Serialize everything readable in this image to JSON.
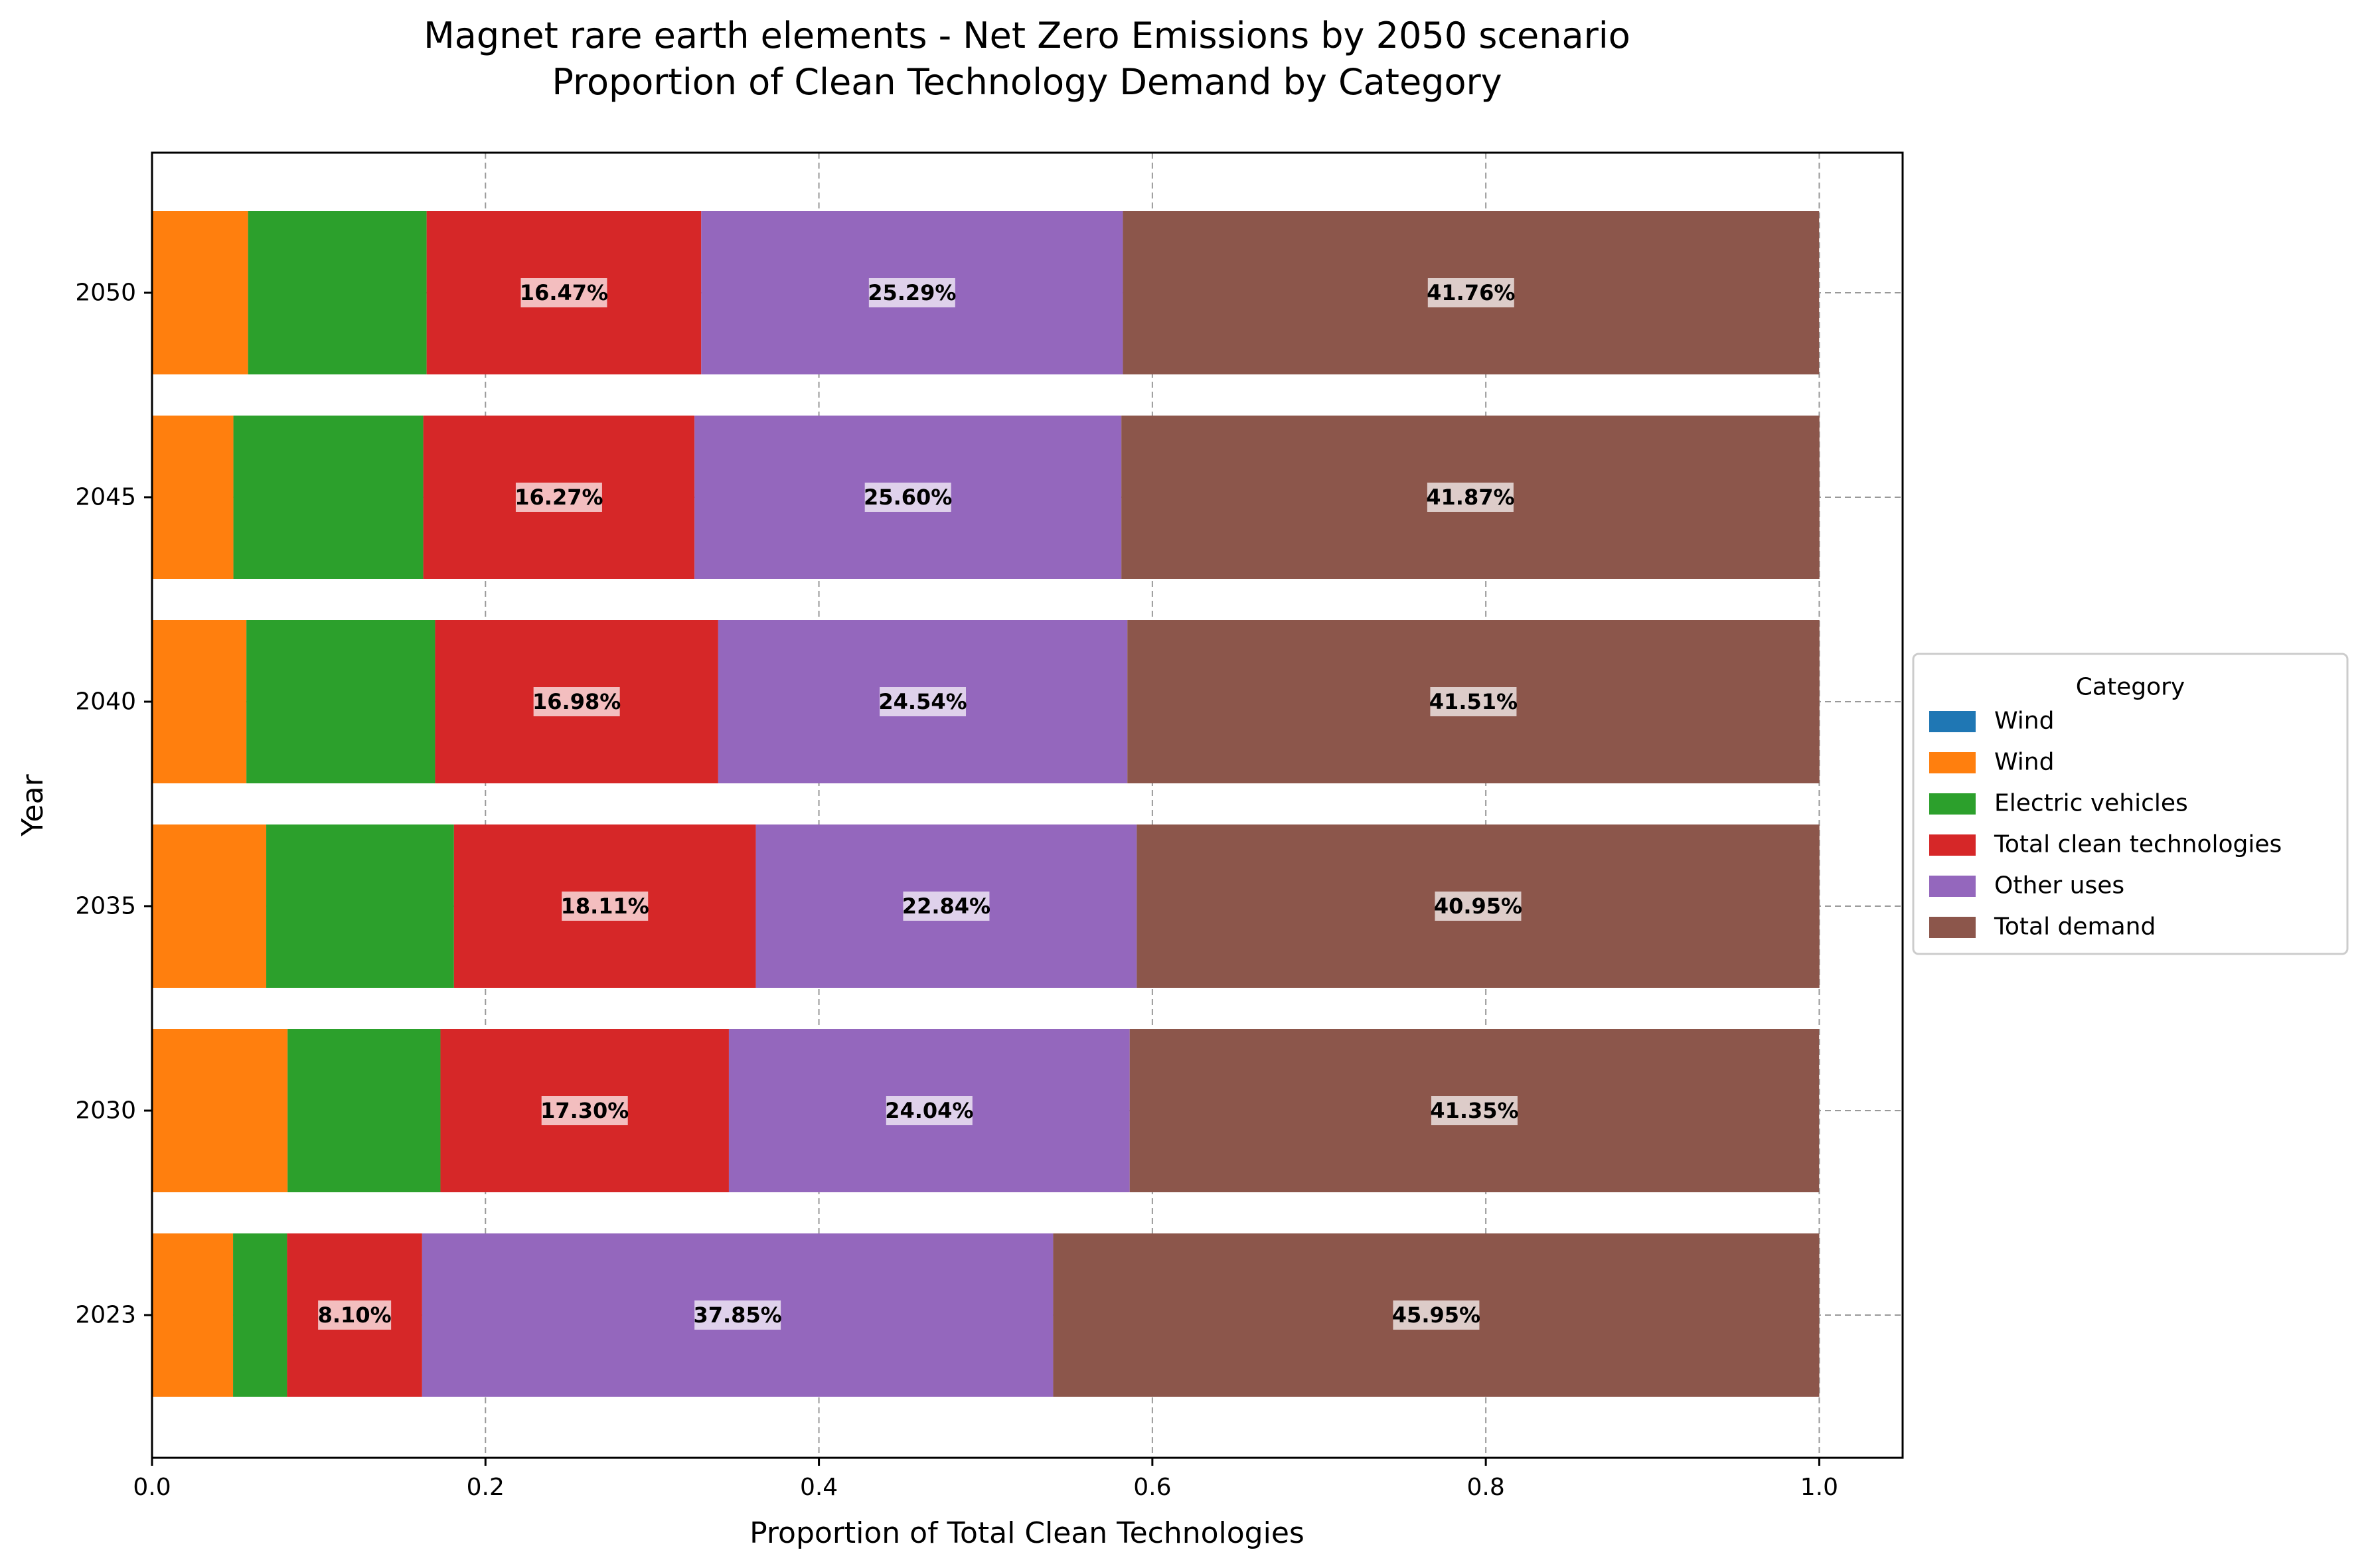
{
  "chart_data": {
    "type": "bar",
    "orientation": "horizontal",
    "stacked": true,
    "title": "Magnet rare earth elements - Net Zero Emissions by 2050 scenario",
    "subtitle": "Proportion of Clean Technology Demand by Category",
    "xlabel": "Proportion of Total Clean Technologies",
    "ylabel": "Year",
    "xlim": [
      0.0,
      1.05
    ],
    "xticks": [
      "0.0",
      "0.2",
      "0.4",
      "0.6",
      "0.8",
      "1.0"
    ],
    "categories": [
      "2023",
      "2030",
      "2035",
      "2040",
      "2045",
      "2050"
    ],
    "grid": true,
    "legend_title": "Category",
    "legend_placement": "center-right outside",
    "series": [
      {
        "name": "Wind",
        "color": "#1f77b4",
        "values": [
          0.0,
          0.0,
          0.0,
          0.0,
          0.0,
          0.0
        ]
      },
      {
        "name": "Wind",
        "color": "#ff7f0e",
        "values": [
          0.0486,
          0.0813,
          0.0685,
          0.0566,
          0.0488,
          0.0576
        ]
      },
      {
        "name": "Electric vehicles",
        "color": "#2ca02c",
        "values": [
          0.0324,
          0.0917,
          0.1126,
          0.1132,
          0.1139,
          0.1071
        ]
      },
      {
        "name": "Total clean technologies",
        "color": "#d62728",
        "values": [
          0.081,
          0.173,
          0.1811,
          0.1698,
          0.1627,
          0.1647
        ]
      },
      {
        "name": "Other uses",
        "color": "#9467bd",
        "values": [
          0.3785,
          0.2404,
          0.2284,
          0.2454,
          0.256,
          0.2529
        ]
      },
      {
        "name": "Total demand",
        "color": "#8c564b",
        "values": [
          0.4595,
          0.4135,
          0.4095,
          0.4151,
          0.4187,
          0.4176
        ]
      }
    ],
    "annotations": [
      {
        "series": "Total clean technologies",
        "labels": [
          "8.10%",
          "17.30%",
          "18.11%",
          "16.98%",
          "16.27%",
          "16.47%"
        ]
      },
      {
        "series": "Other uses",
        "labels": [
          "37.85%",
          "24.04%",
          "22.84%",
          "24.54%",
          "25.60%",
          "25.29%"
        ]
      },
      {
        "series": "Total demand",
        "labels": [
          "45.95%",
          "41.35%",
          "40.95%",
          "41.51%",
          "41.87%",
          "41.76%"
        ]
      }
    ]
  }
}
